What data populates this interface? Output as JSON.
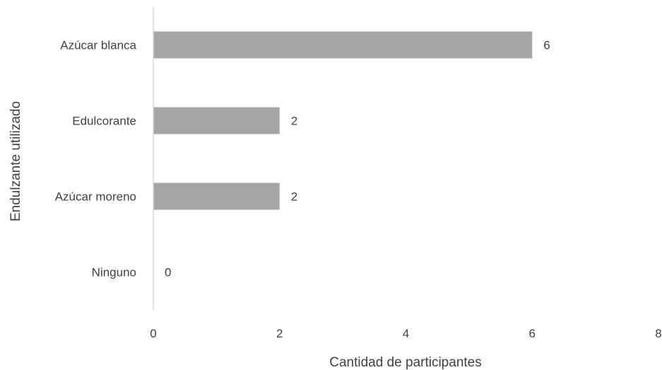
{
  "chart_data": {
    "type": "bar",
    "orientation": "horizontal",
    "title": "",
    "xlabel": "Cantidad de participantes",
    "ylabel": "Endulzante utilizado",
    "categories": [
      "Azúcar blanca",
      "Edulcorante",
      "Azúcar moreno",
      "Ninguno"
    ],
    "values": [
      6,
      2,
      2,
      0
    ],
    "data_labels": [
      "6",
      "2",
      "2",
      "0"
    ],
    "xlim": [
      0,
      8
    ],
    "xticks": [
      0,
      2,
      4,
      6,
      8
    ],
    "xtick_labels": [
      "0",
      "2",
      "4",
      "6",
      "8"
    ],
    "grid": false,
    "legend": "none",
    "bar_color": "#a5a5a5",
    "axis_color": "#d9d9d9"
  }
}
